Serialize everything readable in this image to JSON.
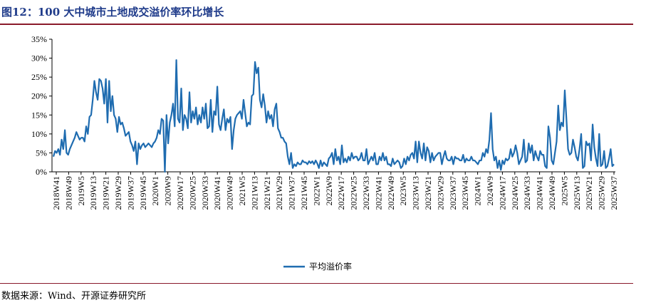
{
  "header": {
    "title": "图12：100 大中城市土地成交溢价率环比增长"
  },
  "footer": {
    "source": "数据来源：Wind、开源证券研究所"
  },
  "colors": {
    "line": "#1f6cb0",
    "rule": "#8a1a2a",
    "title": "#1f3b8a"
  },
  "chart_data": {
    "type": "line",
    "title": "",
    "xlabel": "",
    "ylabel": "",
    "ylim": [
      0,
      35
    ],
    "y_ticks": [
      "0%",
      "5%",
      "10%",
      "15%",
      "20%",
      "25%",
      "30%",
      "35%"
    ],
    "x_tick_labels": [
      "2018W41",
      "2018W49",
      "2019W5",
      "2019W13",
      "2019W21",
      "2019W29",
      "2019W37",
      "2019W45",
      "2020W1",
      "2020W9",
      "2020W17",
      "2020W25",
      "2020W33",
      "2020W41",
      "2020W49",
      "2021W5",
      "2021W13",
      "2021W21",
      "2021W29",
      "2021W37",
      "2021W45",
      "2022W1",
      "2022W9",
      "2022W17",
      "2022W25",
      "2022W33",
      "2022W41",
      "2022W49",
      "2023W5",
      "2023W13",
      "2023W21",
      "2023W29",
      "2023W37",
      "2023W45",
      "2024W1",
      "2024W9",
      "2024W17",
      "2024W25",
      "2024W33",
      "2024W41",
      "2024W49",
      "2025W5",
      "2025W13",
      "2025W21",
      "2025W29",
      "2025W37"
    ],
    "legend_position": "bottom-center",
    "grid": false,
    "series": [
      {
        "name": "平均溢价率",
        "values": [
          4,
          5.5,
          5,
          6,
          4.5,
          8.5,
          6,
          11,
          5,
          4.5,
          6,
          7,
          8,
          9,
          10.5,
          9.5,
          8.5,
          9,
          9,
          8,
          12,
          10,
          14.5,
          15,
          19,
          24,
          21,
          19,
          24.5,
          24,
          22,
          18,
          24.5,
          13,
          24,
          16,
          20,
          15,
          14,
          10.5,
          14.5,
          12.5,
          13,
          11.5,
          9.5,
          10,
          10.5,
          8,
          7,
          5.5,
          8,
          2,
          7.5,
          6,
          7,
          7.5,
          6.5,
          7,
          7.5,
          7,
          6.5,
          7.5,
          8,
          9,
          11,
          10,
          14,
          13.5,
          0,
          15,
          7.5,
          13,
          15,
          18,
          12,
          29.5,
          14,
          13,
          22,
          11,
          15,
          14,
          11.5,
          21,
          13,
          16,
          14,
          17,
          12.5,
          15,
          13,
          17,
          14,
          18,
          11.5,
          12,
          19,
          10.5,
          16,
          15,
          22.5,
          12.5,
          11,
          14,
          16.5,
          11,
          14,
          13,
          14.5,
          6,
          11,
          14,
          15,
          15.5,
          16,
          14,
          19,
          15.5,
          12,
          13,
          12.5,
          20,
          20.5,
          29,
          26,
          27.5,
          19,
          17,
          20.5,
          17.5,
          13,
          16,
          14,
          15,
          12,
          16.5,
          18,
          11.5,
          10.5,
          9,
          9,
          8,
          7.5,
          4,
          2,
          5,
          1,
          2,
          1.5,
          2.5,
          2,
          2,
          3,
          2.5,
          2.5,
          2,
          2.8,
          2.3,
          2.8,
          2,
          3,
          2.2,
          1,
          3,
          1.5,
          2.5,
          2,
          1.5,
          3.5,
          4,
          5,
          2,
          6,
          3,
          4,
          2,
          7,
          2.5,
          3.5,
          2.5,
          4,
          3,
          5,
          3.5,
          4,
          4,
          3,
          3.5,
          5,
          3,
          3,
          6,
          2,
          3,
          4,
          3,
          5,
          2,
          2,
          4,
          3,
          5,
          3,
          4,
          2,
          2,
          1.5,
          3.5,
          2,
          2.5,
          3,
          2.5,
          1,
          1.5,
          3.5,
          2,
          4,
          3,
          4.5,
          5,
          3.5,
          8,
          2.5,
          8,
          5,
          3.5,
          7.5,
          3,
          6.5,
          5.5,
          2.5,
          5,
          3,
          4,
          4.5,
          5,
          5,
          2,
          4,
          5.5,
          3.5,
          3,
          3,
          4,
          2,
          4,
          3.5,
          3.5,
          3,
          3,
          4.5,
          2.5,
          3.5,
          3,
          3,
          4,
          3,
          3,
          2.5,
          2,
          3,
          3,
          5,
          4,
          6,
          5,
          8.5,
          15.5,
          6,
          3,
          4,
          1,
          3,
          0.5,
          3,
          2,
          3.5,
          3,
          3.5,
          6,
          4,
          5,
          7,
          5,
          2,
          3,
          4,
          8.5,
          2.5,
          3,
          7.5,
          5,
          7,
          3,
          5.5,
          4,
          3,
          5.5,
          4.5,
          4.5,
          1.5,
          1,
          12,
          9,
          3,
          2,
          5,
          8,
          17.5,
          11,
          13,
          12,
          21.5,
          14,
          6,
          4.5,
          5,
          8.5,
          6.5,
          4,
          3,
          6,
          10,
          1,
          1.5,
          8,
          7,
          7.5,
          3,
          12.5,
          6.5,
          3.5,
          1.5,
          10,
          1.5,
          2,
          5.5,
          1,
          1.5,
          3.5,
          6,
          1.5,
          2
        ]
      }
    ]
  }
}
